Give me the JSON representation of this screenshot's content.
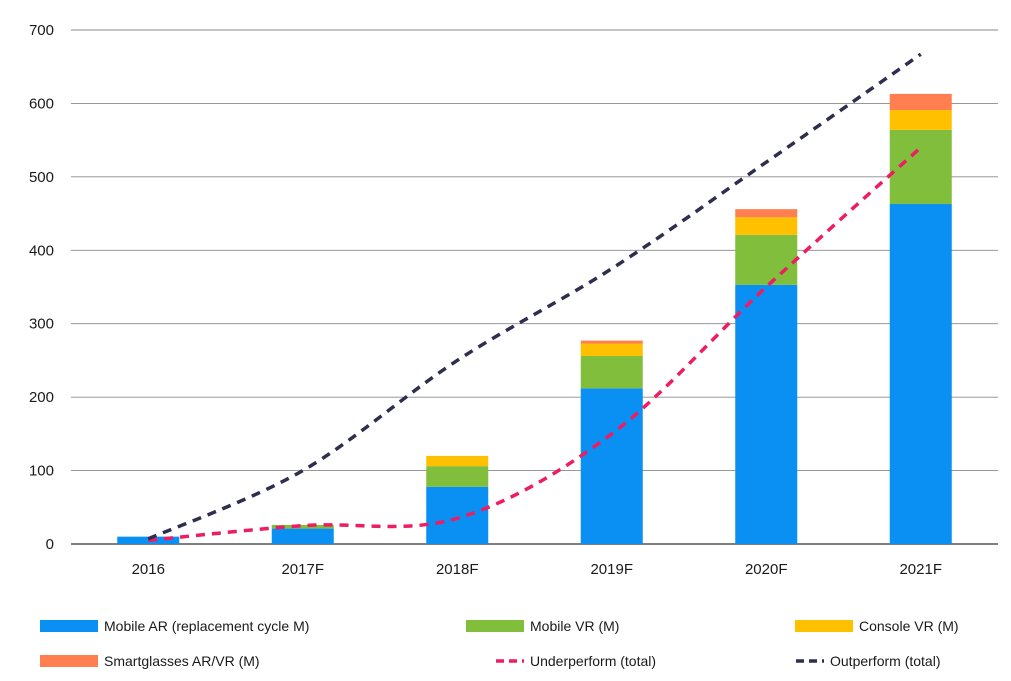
{
  "chart_data": {
    "type": "bar",
    "stacked": true,
    "categories": [
      "2016",
      "2017F",
      "2018F",
      "2019F",
      "2020F",
      "2021F"
    ],
    "series": [
      {
        "name": "Mobile AR (replacement cycle M)",
        "type": "bar",
        "color": "#0a8ff2",
        "values": [
          10,
          21,
          78,
          212,
          353,
          463
        ]
      },
      {
        "name": "Mobile VR (M)",
        "type": "bar",
        "color": "#80be3c",
        "values": [
          0,
          5,
          28,
          44,
          68,
          101
        ]
      },
      {
        "name": "Console VR (M)",
        "type": "bar",
        "color": "#ffc000",
        "values": [
          0,
          0,
          14,
          17,
          24,
          27
        ]
      },
      {
        "name": "Smartglasses AR/VR (M)",
        "type": "bar",
        "color": "#ff7f50",
        "values": [
          0,
          0,
          0,
          4,
          11,
          22
        ]
      },
      {
        "name": "Underperform (total)",
        "type": "line",
        "style": "dashed",
        "color": "#ee1c63",
        "values": [
          5,
          25,
          35,
          150,
          350,
          540
        ]
      },
      {
        "name": "Outperform (total)",
        "type": "line",
        "style": "dashed",
        "color": "#2e2e4e",
        "values": [
          7,
          100,
          250,
          375,
          520,
          667
        ]
      }
    ],
    "yticks": [
      0,
      100,
      200,
      300,
      400,
      500,
      600,
      700
    ],
    "ylim": [
      0,
      700
    ],
    "grid": true,
    "legend_position": "bottom"
  }
}
